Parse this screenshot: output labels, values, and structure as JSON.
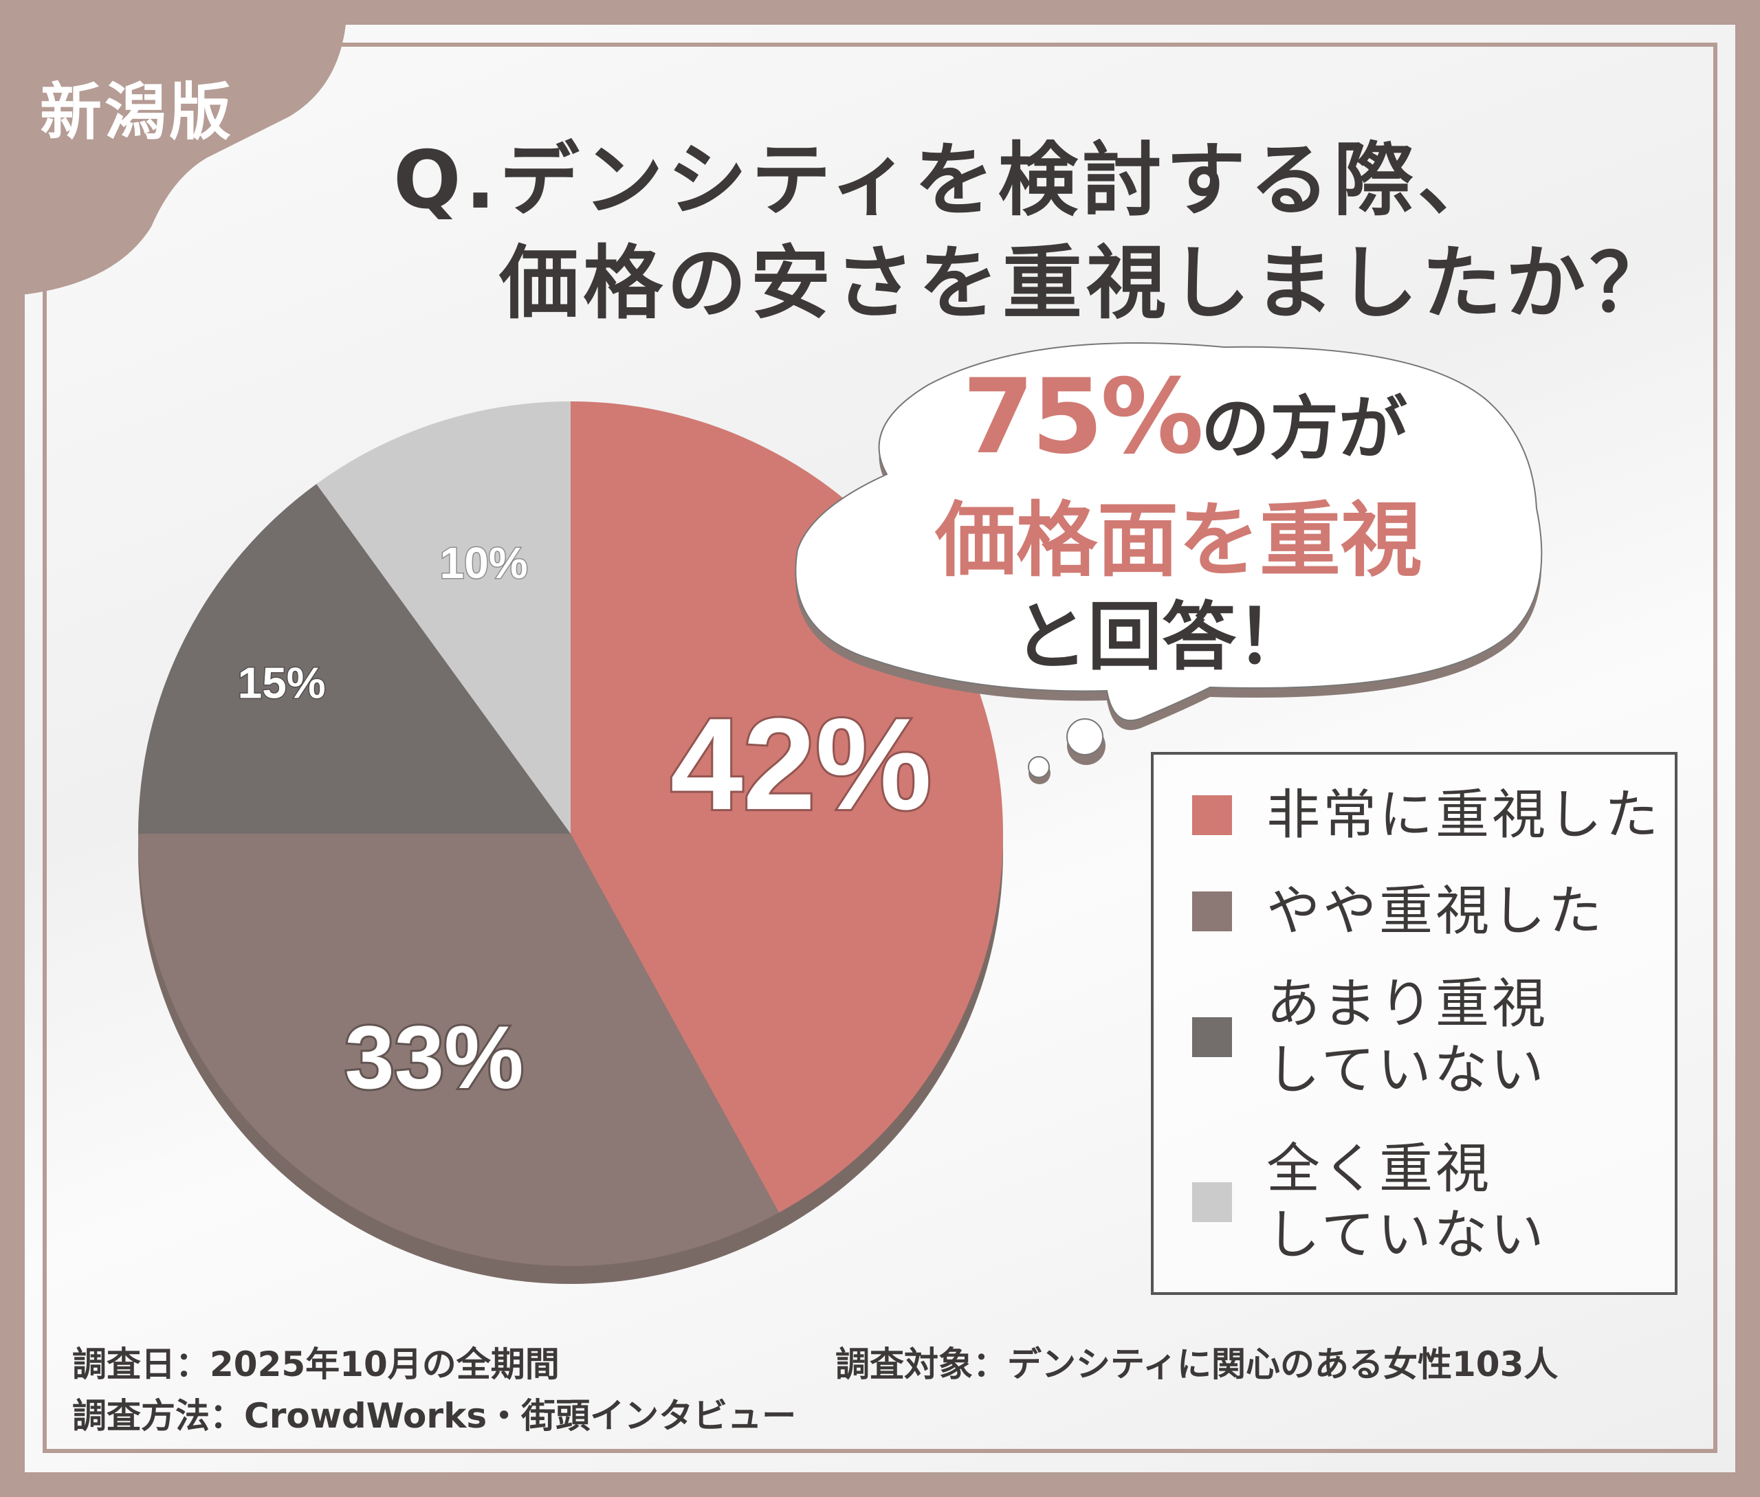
{
  "badge": "新潟版",
  "title": {
    "line1": "Q.デンシティを検討する際、",
    "line2": "価格の安さを重視しましたか？"
  },
  "bubble": {
    "pct": "75%",
    "line1_rest": "の方が",
    "line2": "価格面を重視",
    "line3": "と回答！"
  },
  "chart_data": {
    "type": "pie",
    "title": "Q.デンシティを検討する際、価格の安さを重視しましたか？",
    "categories": [
      "非常に重視した",
      "やや重視した",
      "あまり重視していない",
      "全く重視していない"
    ],
    "values": [
      42,
      33,
      15,
      10
    ],
    "labels": [
      "42%",
      "33%",
      "15%",
      "10%"
    ],
    "colors": [
      "#d07a73",
      "#8c7874",
      "#736d6c",
      "#cccbcb"
    ],
    "legend_placement": "right"
  },
  "legend": [
    {
      "label": "非常に重視した"
    },
    {
      "label": "やや重視した"
    },
    {
      "label": "あまり重視\nしていない"
    },
    {
      "label": "全く重視\nしていない"
    }
  ],
  "footer": {
    "date": "調査日：2025年10月の全期間",
    "method": "調査方法：CrowdWorks・街頭インタビュー",
    "target": "調査対象：デンシティに関心のある女性103人"
  }
}
